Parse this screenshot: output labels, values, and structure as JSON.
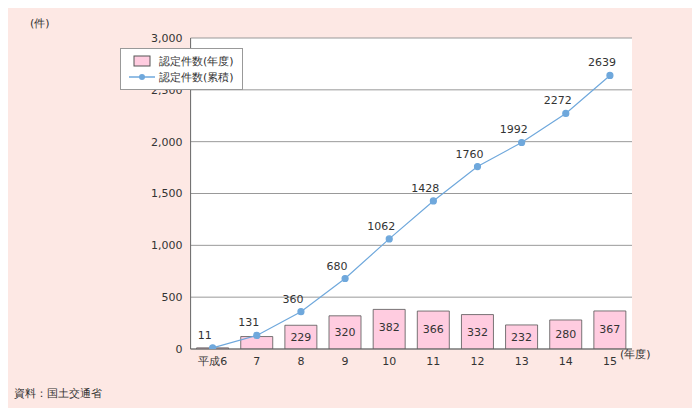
{
  "chart_data": {
    "type": "bar",
    "categories": [
      "平成6",
      "7",
      "8",
      "9",
      "10",
      "11",
      "12",
      "13",
      "14",
      "15"
    ],
    "series": [
      {
        "name": "認定件数(年度)",
        "type": "bar",
        "color": "#ffcce0",
        "values": [
          11,
          120,
          229,
          320,
          382,
          366,
          332,
          232,
          280,
          367
        ]
      },
      {
        "name": "認定件数(累積)",
        "type": "line",
        "color": "#6fa8dc",
        "marker": "circle",
        "values": [
          11,
          131,
          360,
          680,
          1062,
          1428,
          1760,
          1992,
          2272,
          2639
        ]
      }
    ],
    "ylim": [
      0,
      3000
    ],
    "yticks": [
      0,
      500,
      {
        "value": 1000,
        "label": "1,000"
      },
      {
        "value": 1500,
        "label": "1,500"
      },
      {
        "value": 2000,
        "label": "2,000"
      },
      {
        "value": 2500,
        "label": "2,500"
      },
      {
        "value": 3000,
        "label": "3,000"
      }
    ],
    "y_label": "(件)",
    "x_label": "(年度)",
    "source": "資料：国土交通省",
    "grid": true,
    "legend": "upper left",
    "data_labels": true
  }
}
